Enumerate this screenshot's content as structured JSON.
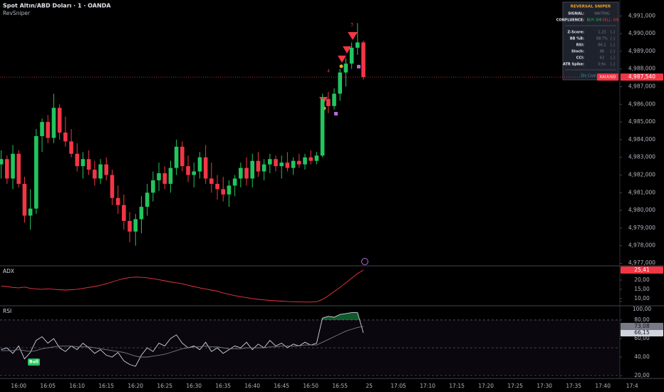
{
  "header": {
    "title": "Spot Altın/ABD Doları · 1 · OANDA",
    "indicator": "RevSniper"
  },
  "panel": {
    "title": "REVERSAL SNIPER",
    "signal": [
      "SIGNAL:",
      "WAITING"
    ],
    "confluence": [
      "CONFLUENCE:",
      "BUY: 0/6",
      "SELL: 0/6"
    ],
    "rows": [
      [
        "Z-Score:",
        "1.23",
        "[-]"
      ],
      [
        "BB %B:",
        "68.7%",
        "[-]"
      ],
      [
        "RSI:",
        "66.1",
        "[-]"
      ],
      [
        "Stoch:",
        "86",
        "[-]"
      ],
      [
        "CCI:",
        "62",
        "[-]"
      ],
      [
        "ATR Spike:",
        "0.9x",
        "[-]"
      ]
    ],
    "footer": "Div Cool: 3"
  },
  "chart_data": [
    {
      "type": "candlestick",
      "up_color": "#22c55e",
      "down_color": "#f23645",
      "grid": false,
      "xlim": [
        -0.2,
        105.9
      ],
      "ylim": [
        4.9769,
        4.9919
      ],
      "yticks": [
        {
          "value": 4.991,
          "label": "4,991,000"
        },
        {
          "value": 4.99,
          "label": "4,990,000"
        },
        {
          "value": 4.989,
          "label": "4,989,000"
        },
        {
          "value": 4.988,
          "label": "4,988,000"
        },
        {
          "value": 4.987,
          "label": "4,987,000"
        },
        {
          "value": 4.986,
          "label": "4,986,000"
        },
        {
          "value": 4.985,
          "label": "4,985,000"
        },
        {
          "value": 4.984,
          "label": "4,984,000"
        },
        {
          "value": 4.983,
          "label": "4,983,000"
        },
        {
          "value": 4.982,
          "label": "4,982,000"
        },
        {
          "value": 4.981,
          "label": "4,981,000"
        },
        {
          "value": 4.98,
          "label": "4,980,000"
        },
        {
          "value": 4.979,
          "label": "4,979,000"
        },
        {
          "value": 4.978,
          "label": "4,978,000"
        },
        {
          "value": 4.977,
          "label": "4,977,000"
        }
      ],
      "open": [
        4.9826,
        4.9829,
        4.9818,
        4.9832,
        4.9815,
        4.9797,
        4.9801,
        4.9842,
        4.985,
        4.9841,
        4.9858,
        4.9844,
        4.9839,
        4.9832,
        4.9825,
        4.9829,
        4.9823,
        4.9818,
        4.9826,
        4.982,
        4.9807,
        4.9803,
        4.9794,
        4.9788,
        4.9795,
        4.9802,
        4.981,
        4.9817,
        4.9821,
        4.9815,
        4.9824,
        4.9836,
        4.9825,
        4.982,
        4.9822,
        4.983,
        4.9818,
        4.9815,
        4.9812,
        4.9809,
        4.9814,
        4.9818,
        4.9824,
        4.9818,
        4.9828,
        4.9822,
        4.9826,
        4.9829,
        4.9825,
        4.9827,
        4.9824,
        4.9828,
        4.9826,
        4.983,
        4.9828,
        4.9831,
        4.9863,
        4.9859,
        4.9866,
        4.9878,
        4.9883,
        4.9892,
        4.9895
      ],
      "high": [
        4.9834,
        4.9831,
        4.9837,
        4.9834,
        4.9819,
        4.9812,
        4.9846,
        4.9852,
        4.9854,
        4.9866,
        4.986,
        4.9853,
        4.9846,
        4.9838,
        4.9833,
        4.9834,
        4.9828,
        4.9829,
        4.983,
        4.9823,
        4.9814,
        4.9809,
        4.9799,
        4.9798,
        4.9808,
        4.9815,
        4.9822,
        4.9827,
        4.9825,
        4.9828,
        4.984,
        4.9839,
        4.9831,
        4.9827,
        4.9833,
        4.9837,
        4.9827,
        4.982,
        4.9819,
        4.9817,
        4.982,
        4.9827,
        4.983,
        4.9832,
        4.9833,
        4.9829,
        4.9832,
        4.9831,
        4.9831,
        4.9833,
        4.983,
        4.9832,
        4.9832,
        4.9834,
        4.9833,
        4.9866,
        4.9867,
        4.9869,
        4.988,
        4.9886,
        4.9895,
        4.9906,
        4.9896
      ],
      "low": [
        4.9818,
        4.9815,
        4.9812,
        4.9813,
        4.9793,
        4.9789,
        4.9798,
        4.9833,
        4.9838,
        4.9838,
        4.984,
        4.9836,
        4.983,
        4.9822,
        4.9818,
        4.982,
        4.9814,
        4.9815,
        4.9817,
        4.9803,
        4.9798,
        4.9789,
        4.9782,
        4.978,
        4.9787,
        4.9797,
        4.9805,
        4.9811,
        4.9812,
        4.981,
        4.982,
        4.9822,
        4.9816,
        4.9813,
        4.9818,
        4.9815,
        4.981,
        4.9806,
        4.9805,
        4.9802,
        4.9808,
        4.9813,
        4.9814,
        4.9813,
        4.9819,
        4.9817,
        4.9821,
        4.9822,
        4.9818,
        4.9822,
        4.982,
        4.9824,
        4.9823,
        4.9826,
        4.9826,
        4.983,
        4.9855,
        4.9857,
        4.9862,
        4.987,
        4.988,
        4.9888,
        4.9874
      ],
      "close": [
        4.9829,
        4.9818,
        4.9832,
        4.9815,
        4.9797,
        4.9801,
        4.9842,
        4.985,
        4.9841,
        4.9858,
        4.9844,
        4.9839,
        4.9832,
        4.9825,
        4.9829,
        4.9823,
        4.9818,
        4.9826,
        4.982,
        4.9807,
        4.9803,
        4.9794,
        4.9788,
        4.9795,
        4.9802,
        4.981,
        4.9817,
        4.9821,
        4.9815,
        4.9824,
        4.9836,
        4.9825,
        4.982,
        4.9822,
        4.983,
        4.9818,
        4.9815,
        4.9812,
        4.9809,
        4.9814,
        4.9818,
        4.9824,
        4.9818,
        4.9828,
        4.9822,
        4.9826,
        4.9829,
        4.9825,
        4.9827,
        4.9824,
        4.9828,
        4.9826,
        4.983,
        4.9828,
        4.9831,
        4.9863,
        4.9859,
        4.9866,
        4.9878,
        4.9883,
        4.9892,
        4.9895,
        4.98754
      ],
      "last_label": {
        "value": 4.98754,
        "label": "4,987,540"
      },
      "symbol": "XAUUSD",
      "annotations": [
        "4",
        "3"
      ]
    },
    {
      "type": "line",
      "title": "ADX",
      "xlim": [
        -0.2,
        105.9
      ],
      "ylim": [
        6.5,
        27.3
      ],
      "yticks": [
        {
          "value": 10,
          "label": "10,00"
        },
        {
          "value": 15,
          "label": "15,00"
        },
        {
          "value": 20,
          "label": "20,00"
        }
      ],
      "series": [
        {
          "name": "ADX",
          "color": "#f23645",
          "values": [
            16.8,
            16.5,
            16.0,
            15.8,
            16.2,
            15.5,
            15.2,
            15.0,
            15.3,
            15.0,
            14.8,
            14.6,
            14.8,
            15.0,
            15.5,
            16.0,
            16.5,
            17.2,
            18.0,
            19.0,
            20.0,
            20.8,
            21.4,
            21.6,
            21.5,
            21.2,
            20.8,
            20.2,
            19.6,
            19.0,
            18.5,
            18.0,
            17.2,
            16.5,
            15.8,
            15.2,
            14.6,
            14.0,
            13.0,
            12.3,
            11.6,
            11.0,
            10.5,
            10.0,
            9.6,
            9.3,
            9.0,
            8.8,
            8.6,
            8.4,
            8.3,
            8.2,
            8.1,
            8.1,
            8.3,
            9.5,
            11.5,
            13.8,
            16.0,
            18.5,
            21.0,
            23.5,
            25.41
          ]
        }
      ],
      "last_labels": [
        {
          "value": 25.41,
          "label": "25,41"
        }
      ]
    },
    {
      "type": "line",
      "title": "RSI",
      "xlim": [
        -0.2,
        105.9
      ],
      "ylim": [
        17.7,
        94.6
      ],
      "bands": [
        80,
        50,
        20
      ],
      "fill_color": "#22c55e",
      "yticks": [
        {
          "value": 20,
          "label": "20,00"
        },
        {
          "value": 40,
          "label": "40,00"
        },
        {
          "value": 60,
          "label": "60,00"
        },
        {
          "value": 80,
          "label": "80,00"
        },
        {
          "value": 100,
          "label": "100,00"
        }
      ],
      "xticks": [
        {
          "value": 3,
          "label": "16:00"
        },
        {
          "value": 8,
          "label": "16:05"
        },
        {
          "value": 13,
          "label": "16:10"
        },
        {
          "value": 18,
          "label": "16:15"
        },
        {
          "value": 23,
          "label": "16:20"
        },
        {
          "value": 28,
          "label": "16:25"
        },
        {
          "value": 33,
          "label": "16:30"
        },
        {
          "value": 38,
          "label": "16:35"
        },
        {
          "value": 43,
          "label": "16:40"
        },
        {
          "value": 48,
          "label": "16:45"
        },
        {
          "value": 53,
          "label": "16:50"
        },
        {
          "value": 58,
          "label": "16:55"
        },
        {
          "value": 63,
          "label": "25"
        },
        {
          "value": 68,
          "label": "17:05"
        },
        {
          "value": 73,
          "label": "17:10"
        },
        {
          "value": 78,
          "label": "17:15"
        },
        {
          "value": 83,
          "label": "17:20"
        },
        {
          "value": 88,
          "label": "17:25"
        },
        {
          "value": 93,
          "label": "17:30"
        },
        {
          "value": 98,
          "label": "17:35"
        },
        {
          "value": 103,
          "label": "17:40"
        },
        {
          "value": 108,
          "label": "17:4"
        }
      ],
      "series": [
        {
          "name": "RSI",
          "color": "#d1d4dc",
          "values": [
            48,
            50,
            44,
            52,
            38,
            45,
            58,
            62,
            55,
            60,
            50,
            46,
            52,
            48,
            55,
            50,
            44,
            48,
            42,
            40,
            45,
            36,
            32,
            30,
            42,
            50,
            46,
            55,
            52,
            60,
            64,
            55,
            50,
            52,
            48,
            56,
            46,
            50,
            44,
            48,
            52,
            50,
            56,
            48,
            54,
            50,
            58,
            52,
            55,
            50,
            54,
            52,
            56,
            53,
            55,
            82,
            84,
            83,
            86,
            87,
            88,
            88,
            66.15
          ]
        },
        {
          "name": "RSI MA",
          "color": "#787b86",
          "values": [
            47,
            47,
            47,
            48,
            47,
            46,
            47,
            49,
            50,
            51,
            52,
            52,
            52,
            51,
            51,
            51,
            50,
            49,
            48,
            47,
            46,
            45,
            43,
            41,
            40,
            40,
            41,
            42,
            43,
            45,
            47,
            49,
            50,
            51,
            51,
            52,
            51,
            51,
            50,
            49,
            49,
            49,
            50,
            50,
            50,
            50,
            51,
            51,
            52,
            52,
            52,
            52,
            53,
            53,
            53,
            56,
            59,
            62,
            65,
            68,
            70,
            72,
            73.08
          ]
        }
      ],
      "last_labels": [
        {
          "value": 66.15,
          "label": "66,15"
        },
        {
          "value": 73.08,
          "label": "73,08"
        }
      ],
      "annotations": [
        "Bull"
      ]
    }
  ]
}
